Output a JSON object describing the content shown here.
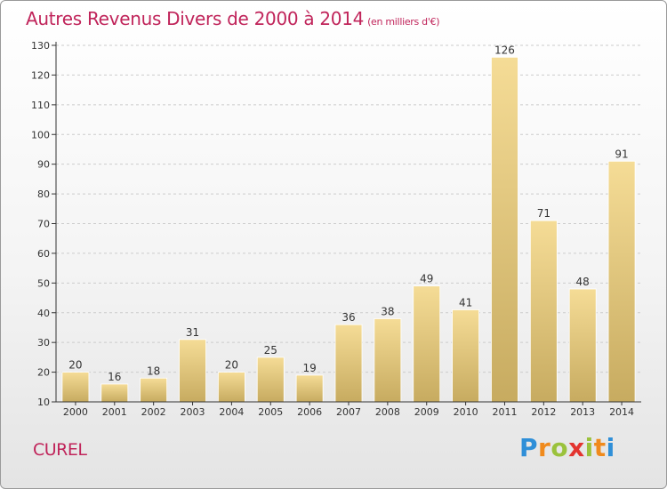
{
  "title": "Autres Revenus Divers de 2000 à 2014",
  "title_unit": "(en milliers d'€)",
  "commune": "CUREL",
  "logo": {
    "letters": [
      "P",
      "r",
      "o",
      "x",
      "i",
      "t",
      "i"
    ],
    "colors": [
      "#2f8fd8",
      "#f08a1c",
      "#9bc23c",
      "#e3342f",
      "#9bc23c",
      "#f08a1c",
      "#2f8fd8"
    ]
  },
  "colors": {
    "accent": "#c0245a",
    "bar_light": "#f5dc96",
    "bar_dark": "#c7ab60",
    "grid": "#cccccc",
    "axis": "#333333"
  },
  "chart_data": {
    "type": "bar",
    "categories": [
      "2000",
      "2001",
      "2002",
      "2003",
      "2004",
      "2005",
      "2006",
      "2007",
      "2008",
      "2009",
      "2010",
      "2011",
      "2012",
      "2013",
      "2014"
    ],
    "values": [
      20,
      16,
      18,
      31,
      20,
      25,
      19,
      36,
      38,
      49,
      41,
      126,
      71,
      48,
      91
    ],
    "ylim": [
      10,
      130
    ],
    "yticks": [
      10,
      20,
      30,
      40,
      50,
      60,
      70,
      80,
      90,
      100,
      110,
      120,
      130
    ],
    "grid": true,
    "data_labels": true
  }
}
